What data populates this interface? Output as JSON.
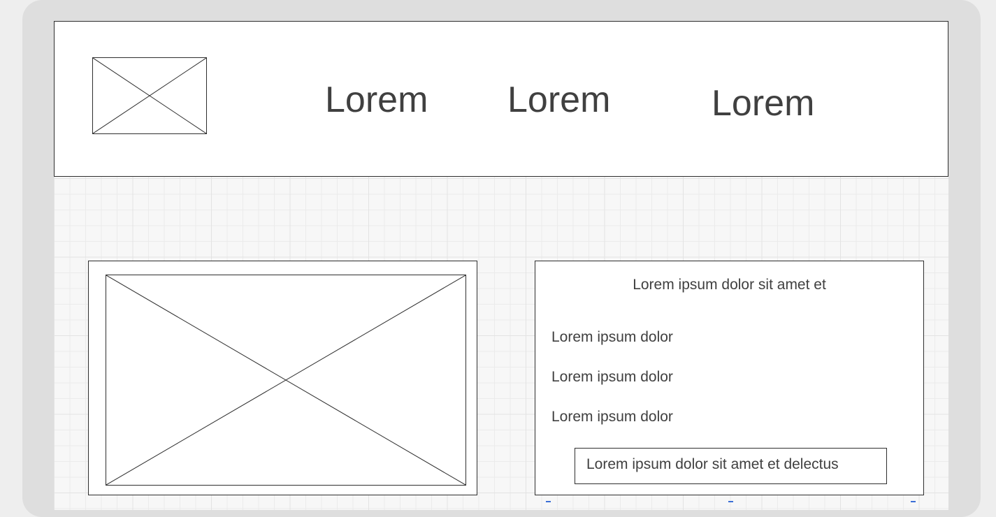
{
  "header": {
    "logo_icon": "image-placeholder-icon",
    "nav": [
      "Lorem",
      "Lorem",
      "Lorem"
    ]
  },
  "main": {
    "hero_image_icon": "image-placeholder-icon",
    "info_card": {
      "title": "Lorem ipsum dolor sit amet et",
      "items": [
        "Lorem ipsum dolor",
        "Lorem ipsum dolor",
        "Lorem ipsum dolor"
      ],
      "button_label": "Lorem ipsum dolor sit amet et delectus"
    }
  },
  "colors": {
    "outer_frame": "#dedede",
    "grid_background": "#f7f7f7",
    "border": "#2e2e2e",
    "text": "#404040",
    "selection_handle": "#3b6fd6"
  }
}
